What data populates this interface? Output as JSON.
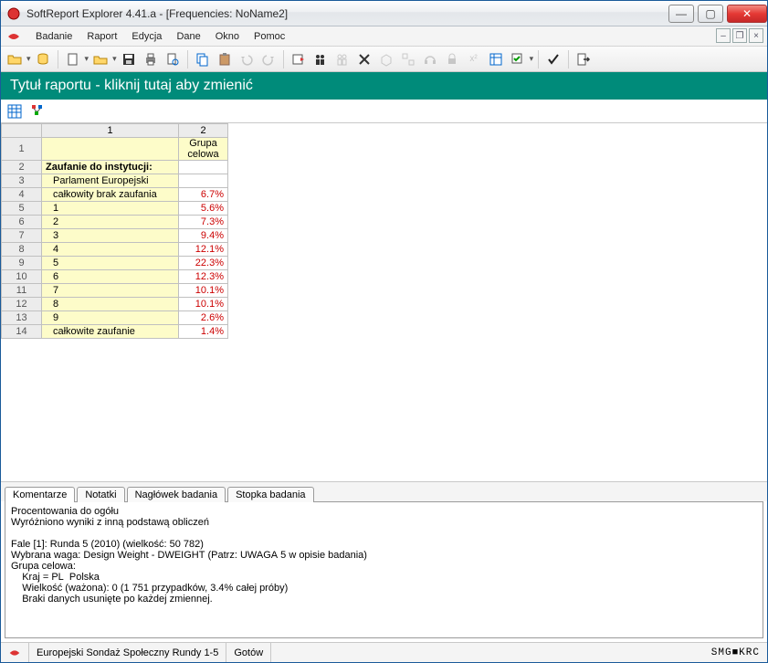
{
  "window": {
    "title": "SoftReport Explorer 4.41.a - [Frequencies: NoName2]"
  },
  "menu": {
    "items": [
      "Badanie",
      "Raport",
      "Edycja",
      "Dane",
      "Okno",
      "Pomoc"
    ]
  },
  "report": {
    "title": "Tytuł raportu - kliknij tutaj aby zmienić"
  },
  "grid": {
    "col_headers": [
      "1",
      "2"
    ],
    "group_header": "Grupa celowa",
    "rows": [
      {
        "n": "1",
        "label": "",
        "val": ""
      },
      {
        "n": "2",
        "label": "Zaufanie do instytucji:",
        "val": "",
        "bold": true
      },
      {
        "n": "3",
        "label": "Parlament Europejski",
        "val": "",
        "indent": 1
      },
      {
        "n": "4",
        "label": "całkowity brak zaufania",
        "val": "6.7%",
        "indent": 1
      },
      {
        "n": "5",
        "label": "1",
        "val": "5.6%",
        "indent": 1
      },
      {
        "n": "6",
        "label": "2",
        "val": "7.3%",
        "indent": 1
      },
      {
        "n": "7",
        "label": "3",
        "val": "9.4%",
        "indent": 1
      },
      {
        "n": "8",
        "label": "4",
        "val": "12.1%",
        "indent": 1
      },
      {
        "n": "9",
        "label": "5",
        "val": "22.3%",
        "indent": 1
      },
      {
        "n": "10",
        "label": "6",
        "val": "12.3%",
        "indent": 1
      },
      {
        "n": "11",
        "label": "7",
        "val": "10.1%",
        "indent": 1
      },
      {
        "n": "12",
        "label": "8",
        "val": "10.1%",
        "indent": 1
      },
      {
        "n": "13",
        "label": "9",
        "val": "2.6%",
        "indent": 1
      },
      {
        "n": "14",
        "label": "całkowite zaufanie",
        "val": "1.4%",
        "indent": 1
      }
    ]
  },
  "tabs": {
    "items": [
      "Komentarze",
      "Notatki",
      "Nagłówek badania",
      "Stopka badania"
    ],
    "active": 0
  },
  "comments": {
    "lines": [
      "Procentowania do ogółu",
      "Wyróżniono wyniki z inną podstawą obliczeń",
      "",
      "Fale [1]: Runda 5 (2010) (wielkość: 50 782)",
      "Wybrana waga: Design Weight - DWEIGHT (Patrz: UWAGA 5 w opisie badania)",
      "Grupa celowa:",
      "    Kraj = PL  Polska",
      "    Wielkość (ważona): 0 (1 751 przypadków, 3.4% całej próby)",
      "    Braki danych usunięte po każdej zmiennej."
    ]
  },
  "status": {
    "left": "Europejski Sondaż Społeczny Rundy 1-5",
    "mid": "Gotów",
    "right": "SMG■KRC"
  },
  "colors": {
    "teal": "#008b7a",
    "cell_bg": "#fdfcc9",
    "val_color": "#cc0000"
  }
}
